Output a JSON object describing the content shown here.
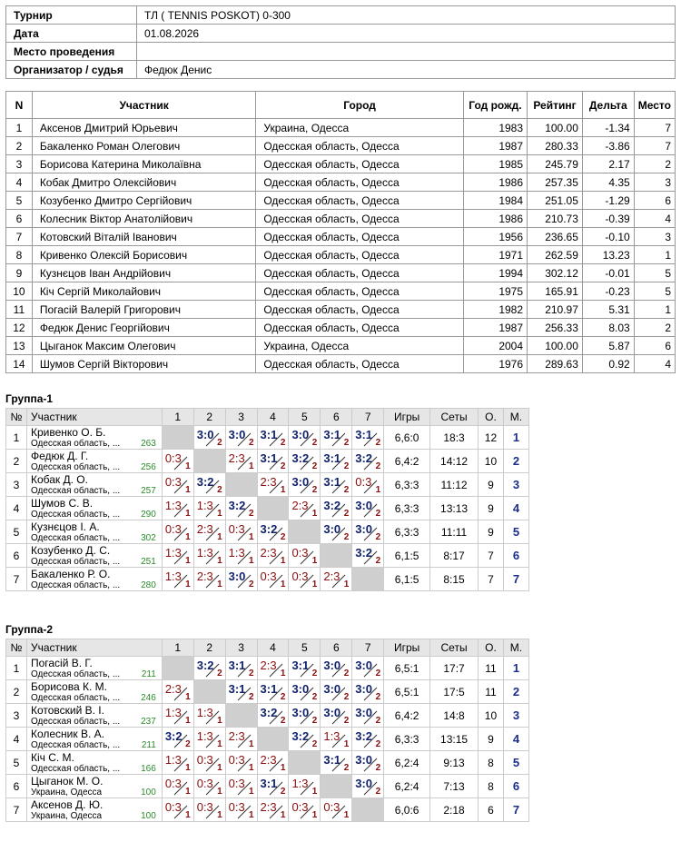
{
  "info": [
    {
      "label": "Турнир",
      "value": "ТЛ ( TENNIS POSKOT) 0-300"
    },
    {
      "label": "Дата",
      "value": "01.08.2026"
    },
    {
      "label": "Место проведения",
      "value": ""
    },
    {
      "label": "Организатор / судья",
      "value": "Федюк Денис"
    }
  ],
  "participants_header": [
    "N",
    "Участник",
    "Город",
    "Год рожд.",
    "Рейтинг",
    "Дельта",
    "Место"
  ],
  "participants": [
    {
      "n": "1",
      "name": "Аксенов Дмитрий Юрьевич",
      "city": "Украина, Одесса",
      "year": "1983",
      "rating": "100.00",
      "delta": "-1.34",
      "place": "7"
    },
    {
      "n": "2",
      "name": "Бакаленко Роман Олегович",
      "city": "Одесская область, Одесса",
      "year": "1987",
      "rating": "280.33",
      "delta": "-3.86",
      "place": "7"
    },
    {
      "n": "3",
      "name": "Борисова Катерина Миколаївна",
      "city": "Одесская область, Одесса",
      "year": "1985",
      "rating": "245.79",
      "delta": "2.17",
      "place": "2"
    },
    {
      "n": "4",
      "name": "Кобак Дмитро Олексійович",
      "city": "Одесская область, Одесса",
      "year": "1986",
      "rating": "257.35",
      "delta": "4.35",
      "place": "3"
    },
    {
      "n": "5",
      "name": "Козубенко Дмитро Сергійович",
      "city": "Одесская область, Одесса",
      "year": "1984",
      "rating": "251.05",
      "delta": "-1.29",
      "place": "6"
    },
    {
      "n": "6",
      "name": "Колесник Віктор Анатолійович",
      "city": "Одесская область, Одесса",
      "year": "1986",
      "rating": "210.73",
      "delta": "-0.39",
      "place": "4"
    },
    {
      "n": "7",
      "name": "Котовский Віталій Іванович",
      "city": "Одесская область, Одесса",
      "year": "1956",
      "rating": "236.65",
      "delta": "-0.10",
      "place": "3"
    },
    {
      "n": "8",
      "name": "Кривенко Олексій Борисович",
      "city": "Одесская область, Одесса",
      "year": "1971",
      "rating": "262.59",
      "delta": "13.23",
      "place": "1"
    },
    {
      "n": "9",
      "name": "Кузнєцов Іван Андрійович",
      "city": "Одесская область, Одесса",
      "year": "1994",
      "rating": "302.12",
      "delta": "-0.01",
      "place": "5"
    },
    {
      "n": "10",
      "name": "Кіч Сергій Миколайович",
      "city": "Одесская область, Одесса",
      "year": "1975",
      "rating": "165.91",
      "delta": "-0.23",
      "place": "5"
    },
    {
      "n": "11",
      "name": "Погасій Валерій Григорович",
      "city": "Одесская область, Одесса",
      "year": "1982",
      "rating": "210.97",
      "delta": "5.31",
      "place": "1"
    },
    {
      "n": "12",
      "name": "Федюк Денис Георгійович",
      "city": "Одесская область, Одесса",
      "year": "1987",
      "rating": "256.33",
      "delta": "8.03",
      "place": "2"
    },
    {
      "n": "13",
      "name": "Цыганок Максим Олегович",
      "city": "Украина, Одесса",
      "year": "2004",
      "rating": "100.00",
      "delta": "5.87",
      "place": "6"
    },
    {
      "n": "14",
      "name": "Шумов Сергій Вікторович",
      "city": "Одесская область, Одесса",
      "year": "1976",
      "rating": "289.63",
      "delta": "0.92",
      "place": "4"
    }
  ],
  "group_header": {
    "num": "№",
    "player": "Участник",
    "cols": [
      "1",
      "2",
      "3",
      "4",
      "5",
      "6",
      "7"
    ],
    "games": "Игры",
    "sets": "Сеты",
    "pts": "О.",
    "place": "М."
  },
  "groups": [
    {
      "title": "Группа-1",
      "rows": [
        {
          "num": "1",
          "name": "Кривенко О. Б.",
          "city": "Одесская область, ...",
          "rating": "263",
          "cells": [
            null,
            [
              "3:0",
              "2"
            ],
            [
              "3:0",
              "2"
            ],
            [
              "3:1",
              "2"
            ],
            [
              "3:0",
              "2"
            ],
            [
              "3:1",
              "2"
            ],
            [
              "3:1",
              "2"
            ]
          ],
          "games": "6,6:0",
          "sets": "18:3",
          "pts": "12",
          "place": "1"
        },
        {
          "num": "2",
          "name": "Федюк Д. Г.",
          "city": "Одесская область, ...",
          "rating": "256",
          "cells": [
            [
              "0:3",
              "1"
            ],
            null,
            [
              "2:3",
              "1"
            ],
            [
              "3:1",
              "2"
            ],
            [
              "3:2",
              "2"
            ],
            [
              "3:1",
              "2"
            ],
            [
              "3:2",
              "2"
            ]
          ],
          "games": "6,4:2",
          "sets": "14:12",
          "pts": "10",
          "place": "2"
        },
        {
          "num": "3",
          "name": "Кобак Д. О.",
          "city": "Одесская область, ...",
          "rating": "257",
          "cells": [
            [
              "0:3",
              "1"
            ],
            [
              "3:2",
              "2"
            ],
            null,
            [
              "2:3",
              "1"
            ],
            [
              "3:0",
              "2"
            ],
            [
              "3:1",
              "2"
            ],
            [
              "0:3",
              "1"
            ]
          ],
          "games": "6,3:3",
          "sets": "11:12",
          "pts": "9",
          "place": "3"
        },
        {
          "num": "4",
          "name": "Шумов С. В.",
          "city": "Одесская область, ...",
          "rating": "290",
          "cells": [
            [
              "1:3",
              "1"
            ],
            [
              "1:3",
              "1"
            ],
            [
              "3:2",
              "2"
            ],
            null,
            [
              "2:3",
              "1"
            ],
            [
              "3:2",
              "2"
            ],
            [
              "3:0",
              "2"
            ]
          ],
          "games": "6,3:3",
          "sets": "13:13",
          "pts": "9",
          "place": "4"
        },
        {
          "num": "5",
          "name": "Кузнєцов І. А.",
          "city": "Одесская область, ...",
          "rating": "302",
          "cells": [
            [
              "0:3",
              "1"
            ],
            [
              "2:3",
              "1"
            ],
            [
              "0:3",
              "1"
            ],
            [
              "3:2",
              "2"
            ],
            null,
            [
              "3:0",
              "2"
            ],
            [
              "3:0",
              "2"
            ]
          ],
          "games": "6,3:3",
          "sets": "11:11",
          "pts": "9",
          "place": "5"
        },
        {
          "num": "6",
          "name": "Козубенко Д. С.",
          "city": "Одесская область, ...",
          "rating": "251",
          "cells": [
            [
              "1:3",
              "1"
            ],
            [
              "1:3",
              "1"
            ],
            [
              "1:3",
              "1"
            ],
            [
              "2:3",
              "1"
            ],
            [
              "0:3",
              "1"
            ],
            null,
            [
              "3:2",
              "2"
            ]
          ],
          "games": "6,1:5",
          "sets": "8:17",
          "pts": "7",
          "place": "6"
        },
        {
          "num": "7",
          "name": "Бакаленко Р. О.",
          "city": "Одесская область, ...",
          "rating": "280",
          "cells": [
            [
              "1:3",
              "1"
            ],
            [
              "2:3",
              "1"
            ],
            [
              "3:0",
              "2"
            ],
            [
              "0:3",
              "1"
            ],
            [
              "0:3",
              "1"
            ],
            [
              "2:3",
              "1"
            ],
            null
          ],
          "games": "6,1:5",
          "sets": "8:15",
          "pts": "7",
          "place": "7"
        }
      ]
    },
    {
      "title": "Группа-2",
      "rows": [
        {
          "num": "1",
          "name": "Погасій В. Г.",
          "city": "Одесская область, ...",
          "rating": "211",
          "cells": [
            null,
            [
              "3:2",
              "2"
            ],
            [
              "3:1",
              "2"
            ],
            [
              "2:3",
              "1"
            ],
            [
              "3:1",
              "2"
            ],
            [
              "3:0",
              "2"
            ],
            [
              "3:0",
              "2"
            ]
          ],
          "games": "6,5:1",
          "sets": "17:7",
          "pts": "11",
          "place": "1"
        },
        {
          "num": "2",
          "name": "Борисова К. М.",
          "city": "Одесская область, ...",
          "rating": "246",
          "cells": [
            [
              "2:3",
              "1"
            ],
            null,
            [
              "3:1",
              "2"
            ],
            [
              "3:1",
              "2"
            ],
            [
              "3:0",
              "2"
            ],
            [
              "3:0",
              "2"
            ],
            [
              "3:0",
              "2"
            ]
          ],
          "games": "6,5:1",
          "sets": "17:5",
          "pts": "11",
          "place": "2"
        },
        {
          "num": "3",
          "name": "Котовский В. І.",
          "city": "Одесская область, ...",
          "rating": "237",
          "cells": [
            [
              "1:3",
              "1"
            ],
            [
              "1:3",
              "1"
            ],
            null,
            [
              "3:2",
              "2"
            ],
            [
              "3:0",
              "2"
            ],
            [
              "3:0",
              "2"
            ],
            [
              "3:0",
              "2"
            ]
          ],
          "games": "6,4:2",
          "sets": "14:8",
          "pts": "10",
          "place": "3"
        },
        {
          "num": "4",
          "name": "Колесник В. А.",
          "city": "Одесская область, ...",
          "rating": "211",
          "cells": [
            [
              "3:2",
              "2"
            ],
            [
              "1:3",
              "1"
            ],
            [
              "2:3",
              "1"
            ],
            null,
            [
              "3:2",
              "2"
            ],
            [
              "1:3",
              "1"
            ],
            [
              "3:2",
              "2"
            ]
          ],
          "games": "6,3:3",
          "sets": "13:15",
          "pts": "9",
          "place": "4"
        },
        {
          "num": "5",
          "name": "Кіч С. М.",
          "city": "Одесская область, ...",
          "rating": "166",
          "cells": [
            [
              "1:3",
              "1"
            ],
            [
              "0:3",
              "1"
            ],
            [
              "0:3",
              "1"
            ],
            [
              "2:3",
              "1"
            ],
            null,
            [
              "3:1",
              "2"
            ],
            [
              "3:0",
              "2"
            ]
          ],
          "games": "6,2:4",
          "sets": "9:13",
          "pts": "8",
          "place": "5"
        },
        {
          "num": "6",
          "name": "Цыганок М. О.",
          "city": "Украина, Одесса",
          "rating": "100",
          "cells": [
            [
              "0:3",
              "1"
            ],
            [
              "0:3",
              "1"
            ],
            [
              "0:3",
              "1"
            ],
            [
              "3:1",
              "2"
            ],
            [
              "1:3",
              "1"
            ],
            null,
            [
              "3:0",
              "2"
            ]
          ],
          "games": "6,2:4",
          "sets": "7:13",
          "pts": "8",
          "place": "6"
        },
        {
          "num": "7",
          "name": "Аксенов Д. Ю.",
          "city": "Украина, Одесса",
          "rating": "100",
          "cells": [
            [
              "0:3",
              "1"
            ],
            [
              "0:3",
              "1"
            ],
            [
              "0:3",
              "1"
            ],
            [
              "2:3",
              "1"
            ],
            [
              "0:3",
              "1"
            ],
            [
              "0:3",
              "1"
            ],
            null
          ],
          "games": "6,0:6",
          "sets": "2:18",
          "pts": "6",
          "place": "7"
        }
      ]
    }
  ]
}
